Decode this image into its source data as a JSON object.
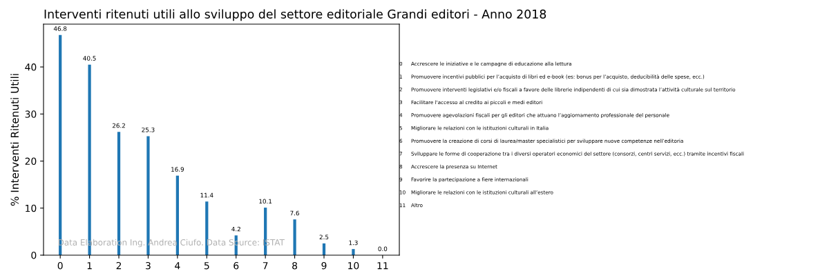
{
  "chart_data": {
    "type": "bar",
    "title": "Interventi ritenuti utili allo sviluppo del settore editoriale Grandi editori - Anno 2018",
    "ylabel": "% Interventi Ritenuti Utili",
    "categories": [
      "0",
      "1",
      "2",
      "3",
      "4",
      "5",
      "6",
      "7",
      "8",
      "9",
      "10",
      "11"
    ],
    "values": [
      46.8,
      40.5,
      26.2,
      25.3,
      16.9,
      11.4,
      4.2,
      10.1,
      7.6,
      2.5,
      1.3,
      0.0
    ],
    "color": "#1f77b4",
    "ylim": [
      0,
      49.1
    ],
    "yticks": [
      0,
      10,
      20,
      30,
      40
    ],
    "value_labels": [
      "46.8",
      "40.5",
      "26.2",
      "25.3",
      "16.9",
      "11.4",
      "4.2",
      "10.1",
      "7.6",
      "2.5",
      "1.3",
      "0.0"
    ],
    "grid": false,
    "annotations": [
      "0 Accrescere le iniziative e le campagne di educazione alla lettura",
      "1 Promuovere incentivi pubblici per l’acquisto di libri ed e-book (es: bonus per l’acquisto, deducibilità delle spese, ecc.)",
      "2 Promuovere interventi legislativi e/o fiscali a favore delle librerie indipendenti di cui sia dimostrata l’attività culturale sul territorio",
      "3 Facilitare l'accesso al credito ai piccoli e medi editori",
      "4 Promuovere agevolazioni fiscali per gli editori che attuano l’aggiornamento professionale del personale",
      "5 Migliorare le relazioni con le istituzioni culturali in Italia",
      "6 Promuovere la creazione di corsi di laurea/master specialistici per sviluppare nuove competenze nell’editoria",
      "7 Sviluppare le forme di cooperazione tra i diversi operatori economici del settore (consorzi, centri servizi, ecc.) tramite incentivi fiscali",
      "8 Accrescere la presenza su Internet",
      "9 Favorire la partecipazione a fiere internazionali",
      "10 Migliorare le relazioni con le istituzioni culturali all’estero",
      "11 Altro",
      "Data Elaboration Ing. Andrea Ciufo. Data Source: ISTAT"
    ]
  }
}
